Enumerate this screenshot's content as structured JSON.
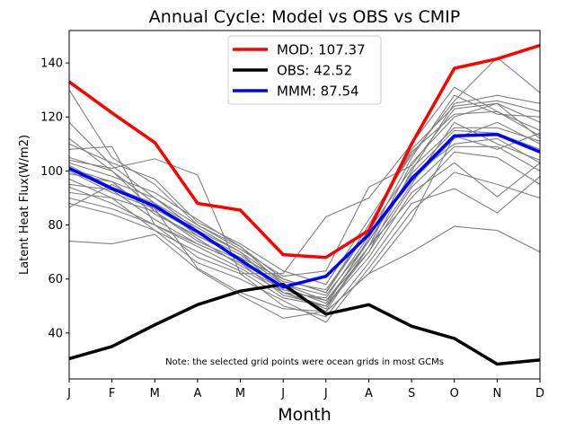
{
  "chart_data": {
    "type": "line",
    "title": "Annual Cycle: Model vs OBS vs CMIP",
    "xlabel": "Month",
    "ylabel": "Latent Heat Flux(W/m2)",
    "categories": [
      "J",
      "F",
      "M",
      "A",
      "M",
      "J",
      "J",
      "A",
      "S",
      "O",
      "N",
      "D"
    ],
    "ylim": [
      23,
      152
    ],
    "yticks": [
      40,
      60,
      80,
      100,
      120,
      140
    ],
    "annotation": "Note: the selected grid points were ocean grids in most GCMs",
    "legend_position": "upper-center",
    "series": [
      {
        "name": "MOD: 107.37",
        "color": "#ff0000",
        "values": [
          133,
          121.5,
          110.5,
          88,
          85.5,
          69,
          68,
          78,
          110,
          138,
          141.5,
          146.5
        ]
      },
      {
        "name": "OBS: 42.52",
        "color": "#000000",
        "values": [
          30.5,
          35,
          43,
          50.5,
          55.5,
          58,
          47,
          50.5,
          42.5,
          38,
          28.5,
          30
        ]
      },
      {
        "name": "MMM: 87.54",
        "color": "#0000ff",
        "values": [
          101,
          93.5,
          87,
          77.5,
          67,
          57,
          61,
          76.5,
          97,
          113,
          113.5,
          107
        ]
      }
    ],
    "cmip_color": "#808080",
    "cmip_members": [
      [
        130,
        105,
        95,
        80,
        72,
        58,
        52,
        70,
        100,
        125,
        128,
        125
      ],
      [
        118,
        102,
        90,
        78,
        70,
        55,
        50,
        75,
        105,
        128,
        121,
        120
      ],
      [
        112,
        100,
        88,
        76,
        68,
        60,
        55,
        78,
        108,
        124,
        126,
        122
      ],
      [
        108,
        109,
        80,
        73,
        66,
        57,
        48,
        72,
        95,
        118,
        110,
        104
      ],
      [
        105,
        100,
        85,
        75,
        65,
        56,
        52,
        72,
        103,
        120,
        125,
        112
      ],
      [
        104,
        101,
        104.5,
        98.5,
        62,
        62,
        83,
        90,
        110,
        131,
        122,
        113
      ],
      [
        103,
        98,
        92,
        82,
        72,
        60,
        55,
        80,
        107,
        121,
        122,
        115
      ],
      [
        102,
        94,
        88,
        79,
        70,
        59,
        56,
        78,
        101,
        116,
        116,
        111
      ],
      [
        100,
        92,
        86,
        77,
        69,
        58,
        54,
        74,
        99,
        115,
        114,
        108
      ],
      [
        99,
        96,
        84,
        76,
        68,
        55,
        53,
        76,
        96,
        112,
        118,
        110
      ],
      [
        97,
        90,
        85,
        74,
        67,
        57,
        51,
        74,
        98,
        110,
        112,
        103
      ],
      [
        95,
        93,
        82,
        73,
        66,
        54,
        50,
        70,
        94,
        109,
        109,
        100
      ],
      [
        94,
        88,
        80,
        72,
        64,
        55,
        49,
        72,
        90,
        107,
        105,
        95
      ],
      [
        92,
        90,
        78,
        70,
        63,
        53,
        50,
        68,
        92,
        103,
        90.5,
        103
      ],
      [
        90,
        86,
        80,
        68,
        62,
        50,
        46,
        66,
        88,
        93.5,
        84.5,
        98
      ],
      [
        88,
        84,
        78,
        66,
        60,
        52,
        44,
        64,
        85,
        99.5,
        95,
        90
      ],
      [
        86.5,
        95,
        86,
        64,
        55,
        49,
        48,
        62,
        82,
        113,
        108,
        114
      ],
      [
        74,
        73,
        76.5,
        63.5,
        54,
        45.5,
        48,
        62,
        70,
        79.5,
        78,
        70
      ],
      [
        110,
        103,
        97,
        81,
        73,
        63,
        58,
        82,
        106,
        126,
        142,
        129
      ],
      [
        101,
        96,
        90,
        80,
        71,
        61,
        63,
        94,
        102,
        123,
        125,
        118
      ]
    ]
  }
}
